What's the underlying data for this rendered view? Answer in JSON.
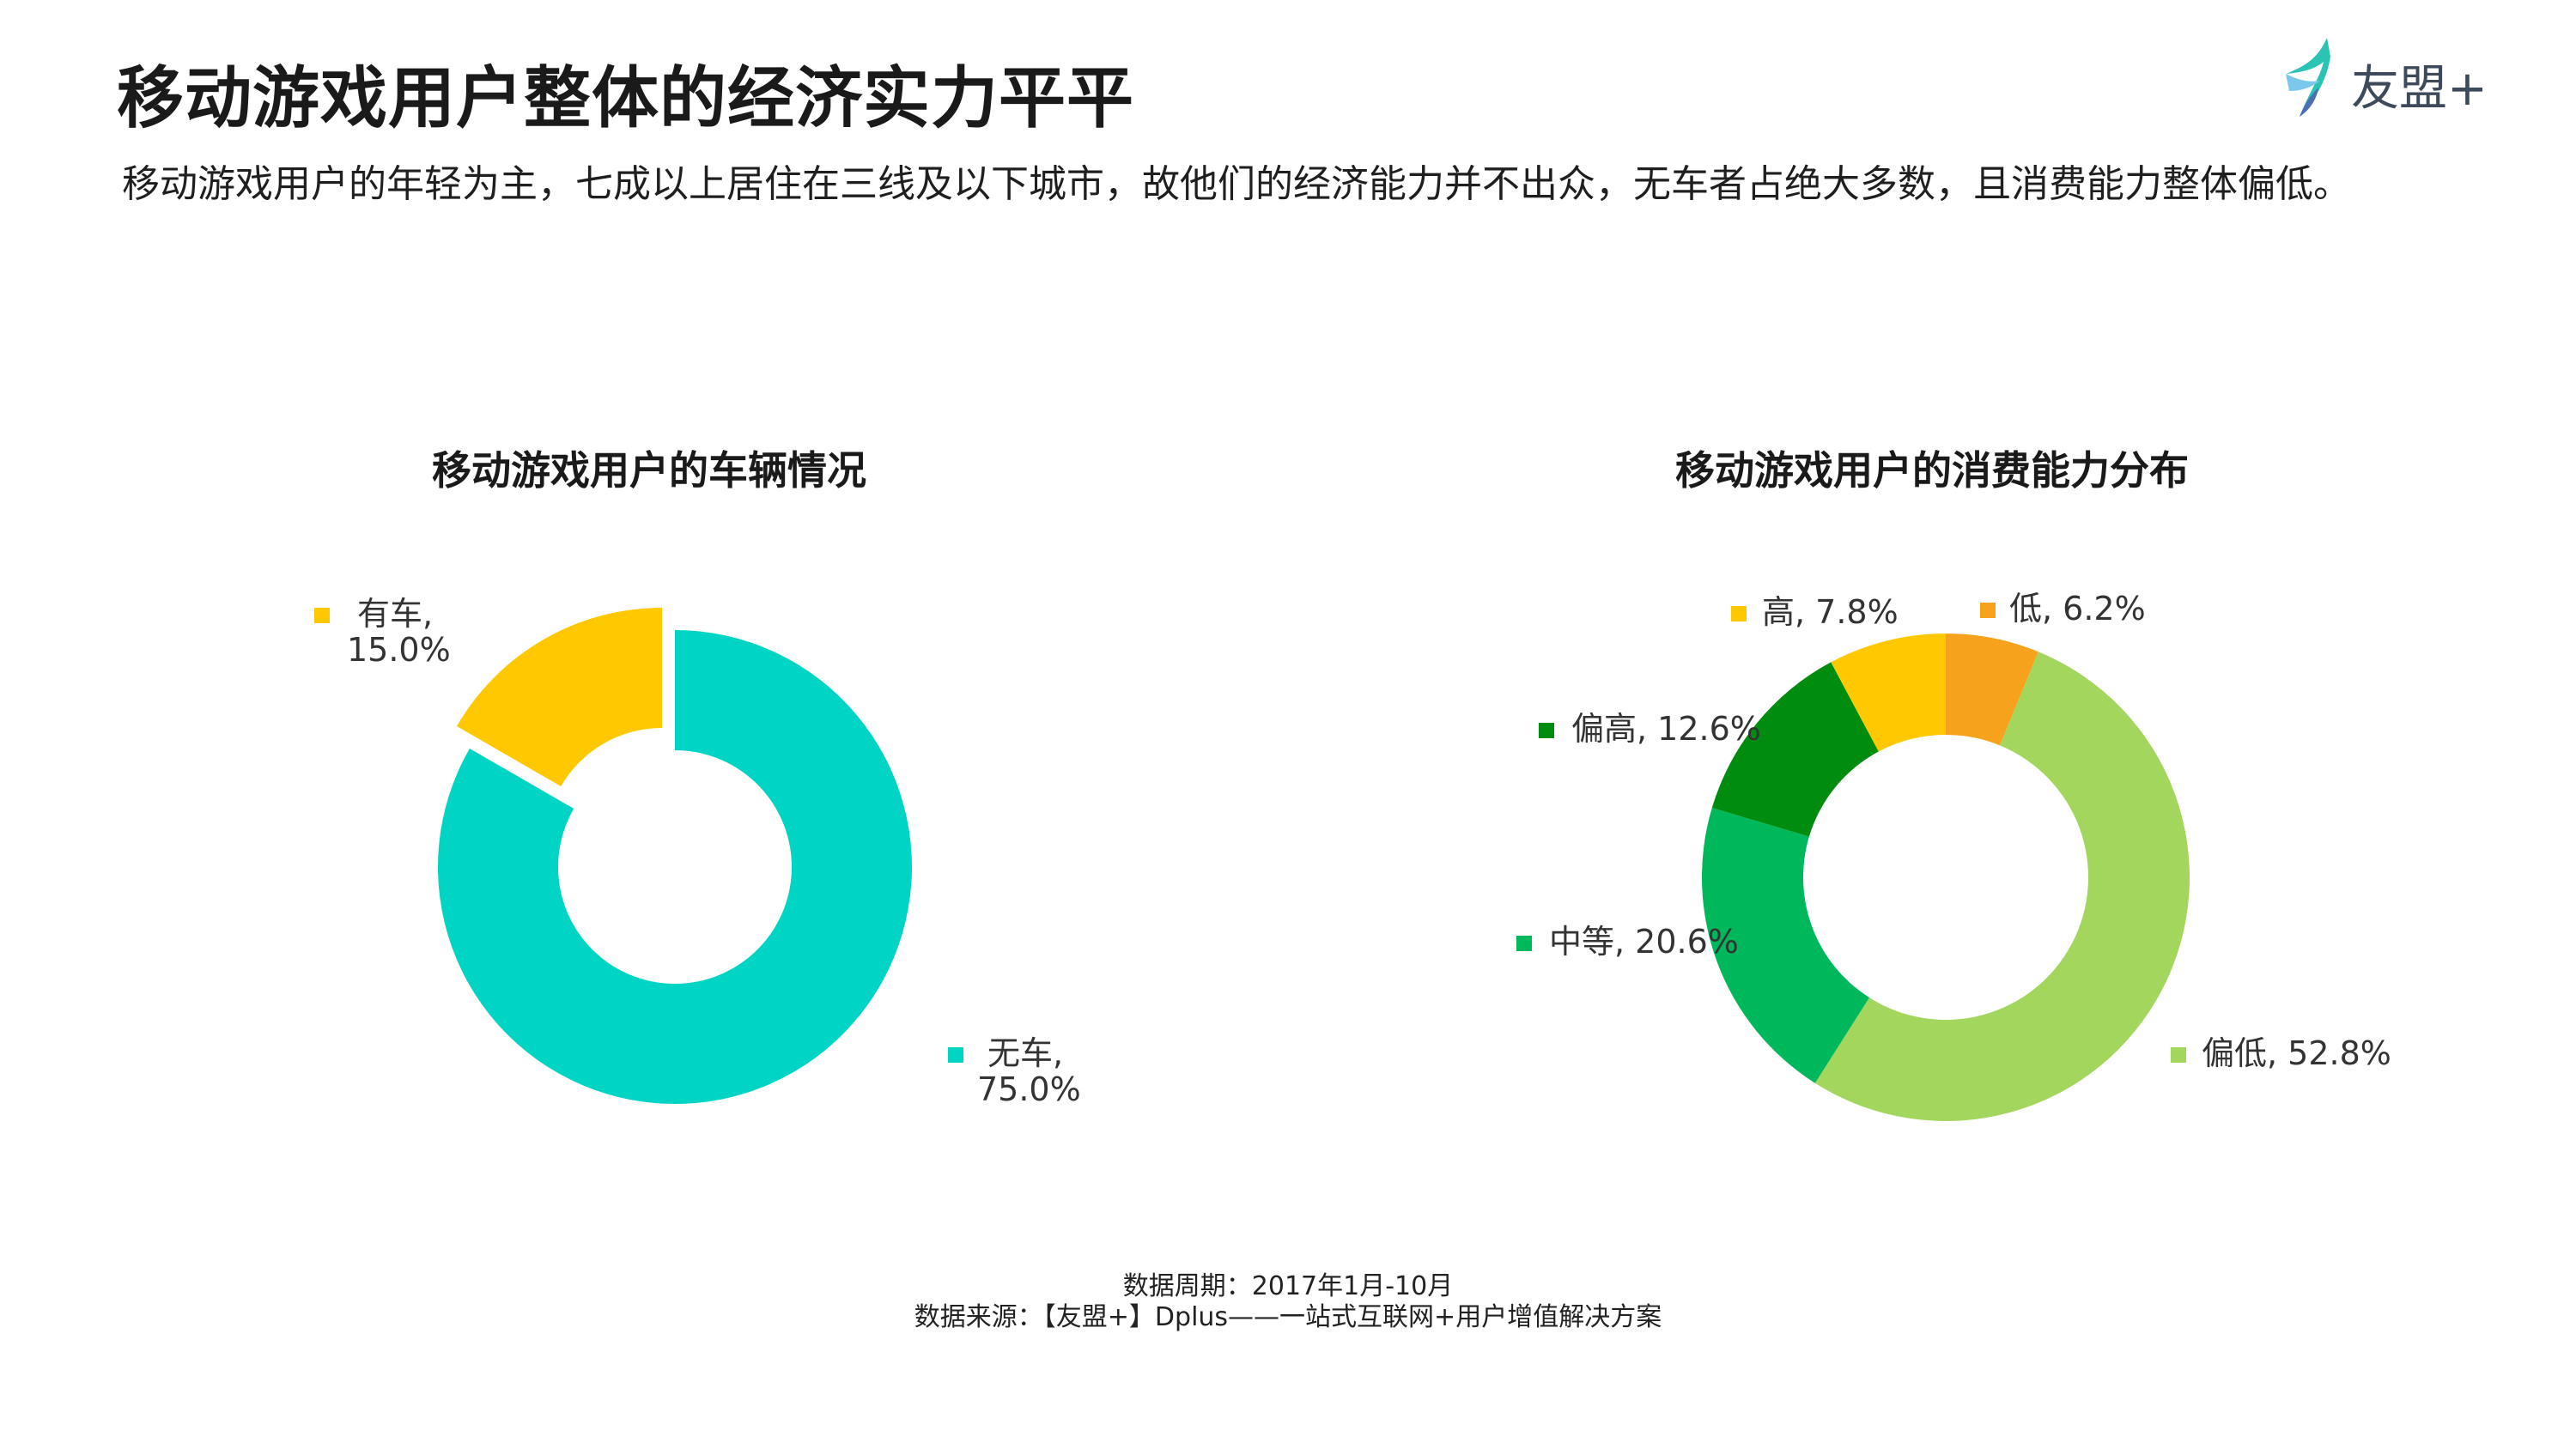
{
  "header": {
    "title": "移动游戏用户整体的经济实力平平",
    "subtitle": "移动游戏用户的年轻为主，七成以上居住在三线及以下城市，故他们的经济能力并不出众，无车者占绝大多数，且消费能力整体偏低。"
  },
  "brand": {
    "name": "友盟+",
    "icon": "umeng-bird-logo-icon"
  },
  "chart_data": [
    {
      "type": "pie",
      "title": "移动游戏用户的车辆情况",
      "donut": true,
      "start_angle_deg": 0,
      "legend": "labels-beside-slices",
      "slices": [
        {
          "label": "无车",
          "value": 75.0,
          "display": "75.0%",
          "color": "#00d4c5",
          "exploded": false
        },
        {
          "label": "有车",
          "value": 15.0,
          "display": "15.0%",
          "color": "#ffc800",
          "exploded": true
        }
      ]
    },
    {
      "type": "pie",
      "title": "移动游戏用户的消费能力分布",
      "donut": true,
      "start_angle_deg": 0,
      "legend": "labels-beside-slices",
      "slices": [
        {
          "label": "低",
          "value": 6.2,
          "display": "6.2%",
          "color": "#f7a21d"
        },
        {
          "label": "偏低",
          "value": 52.8,
          "display": "52.8%",
          "color": "#a2d65c"
        },
        {
          "label": "中等",
          "value": 20.6,
          "display": "20.6%",
          "color": "#00b85c"
        },
        {
          "label": "偏高",
          "value": 12.6,
          "display": "12.6%",
          "color": "#008c0e"
        },
        {
          "label": "高",
          "value": 7.8,
          "display": "7.8%",
          "color": "#ffc800"
        }
      ]
    }
  ],
  "footer": {
    "period": "数据周期：2017年1月-10月",
    "source": "数据来源：【友盟+】Dplus——一站式互联网+用户增值解决方案"
  }
}
